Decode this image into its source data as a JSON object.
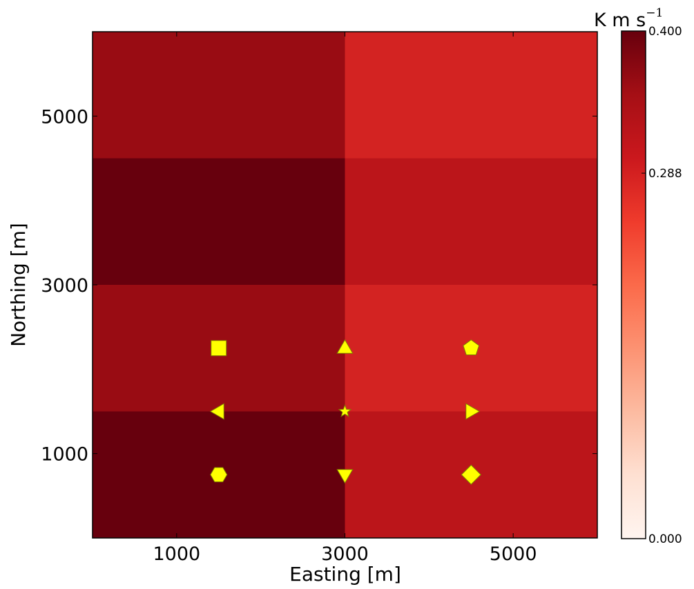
{
  "chart_data": {
    "type": "heatmap",
    "xlabel": "Easting [m]",
    "ylabel": "Northing [m]",
    "xlim": [
      0,
      6000
    ],
    "ylim": [
      0,
      6000
    ],
    "x_ticks": [
      1000,
      3000,
      5000
    ],
    "y_ticks": [
      1000,
      3000,
      5000
    ],
    "grid": false,
    "colormap": "Reds",
    "colorbar": {
      "unit": "K m s",
      "unit_exponent": "−1",
      "min": 0.0,
      "max": 0.4,
      "ticks": [
        {
          "value": 0.0,
          "label": "0.000"
        },
        {
          "value": 0.288,
          "label": "0.288"
        },
        {
          "value": 0.4,
          "label": "0.400"
        }
      ],
      "location": "right"
    },
    "x_edges": [
      0,
      3000,
      6000
    ],
    "y_edges": [
      0,
      1500,
      3000,
      4500,
      6000
    ],
    "cells": [
      {
        "x": 1500,
        "y": 750,
        "value": 0.395,
        "color": "#67000d"
      },
      {
        "x": 4500,
        "y": 750,
        "value": 0.33,
        "color": "#bb151a"
      },
      {
        "x": 1500,
        "y": 2250,
        "value": 0.355,
        "color": "#990c13"
      },
      {
        "x": 4500,
        "y": 2250,
        "value": 0.305,
        "color": "#d32322"
      },
      {
        "x": 1500,
        "y": 3750,
        "value": 0.395,
        "color": "#67000d"
      },
      {
        "x": 4500,
        "y": 3750,
        "value": 0.33,
        "color": "#bb151a"
      },
      {
        "x": 1500,
        "y": 5250,
        "value": 0.355,
        "color": "#990c13"
      },
      {
        "x": 4500,
        "y": 5250,
        "value": 0.305,
        "color": "#d32322"
      }
    ],
    "markers": [
      {
        "shape": "square",
        "x": 1500,
        "y": 2250
      },
      {
        "shape": "triangle-up",
        "x": 3000,
        "y": 2250
      },
      {
        "shape": "pentagon",
        "x": 4500,
        "y": 2250
      },
      {
        "shape": "triangle-left",
        "x": 1500,
        "y": 1500
      },
      {
        "shape": "star",
        "x": 3000,
        "y": 1500
      },
      {
        "shape": "triangle-right",
        "x": 4500,
        "y": 1500
      },
      {
        "shape": "hexagon",
        "x": 1500,
        "y": 750
      },
      {
        "shape": "triangle-down",
        "x": 3000,
        "y": 750
      },
      {
        "shape": "diamond",
        "x": 4500,
        "y": 750
      }
    ],
    "marker_color": "#ffff00",
    "marker_edge_color": "#808000"
  }
}
